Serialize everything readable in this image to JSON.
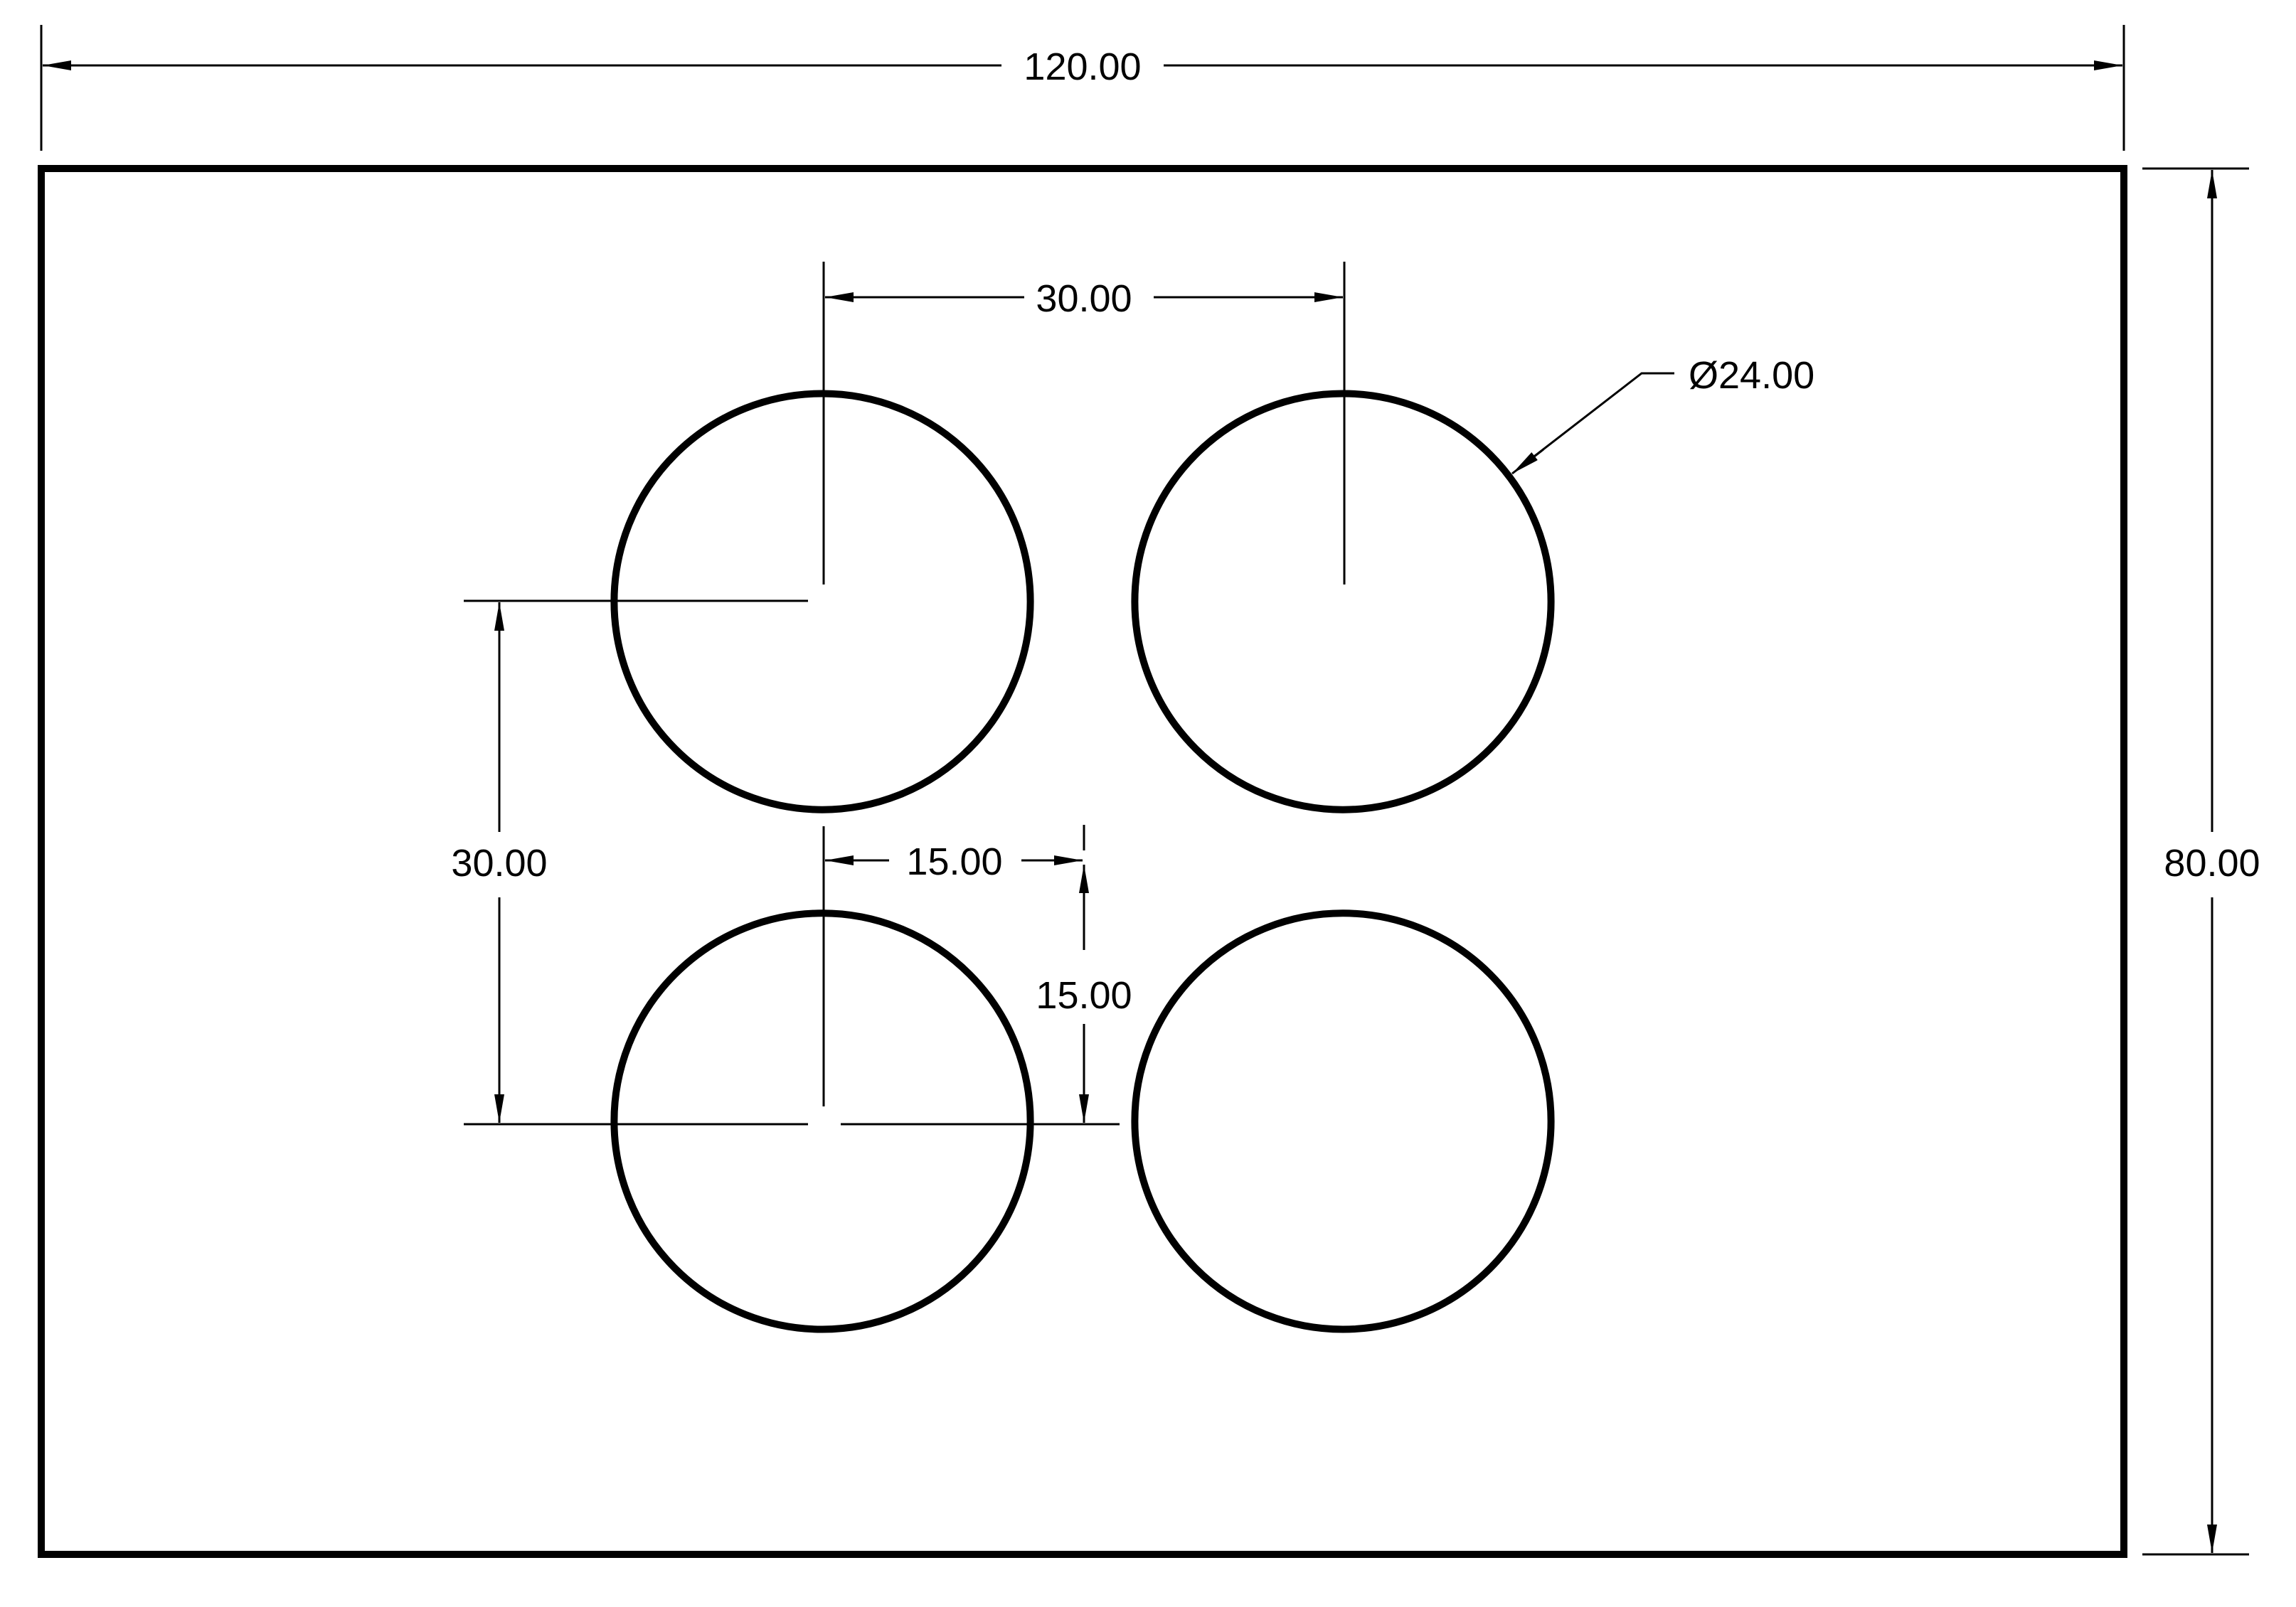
{
  "colors": {
    "line": "#000000",
    "background": "#ffffff"
  },
  "dimensions": {
    "overall_width": "120.00",
    "overall_height": "80.00",
    "hole_spacing_horizontal": "30.00",
    "hole_spacing_vertical": "30.00",
    "offset_horizontal": "15.00",
    "offset_vertical": "15.00",
    "hole_diameter": "Ø24.00"
  },
  "holes": [
    {
      "x": 45,
      "y": 25,
      "diameter": 24
    },
    {
      "x": 75,
      "y": 25,
      "diameter": 24
    },
    {
      "x": 45,
      "y": 55,
      "diameter": 24
    },
    {
      "x": 75,
      "y": 55,
      "diameter": 24
    }
  ]
}
